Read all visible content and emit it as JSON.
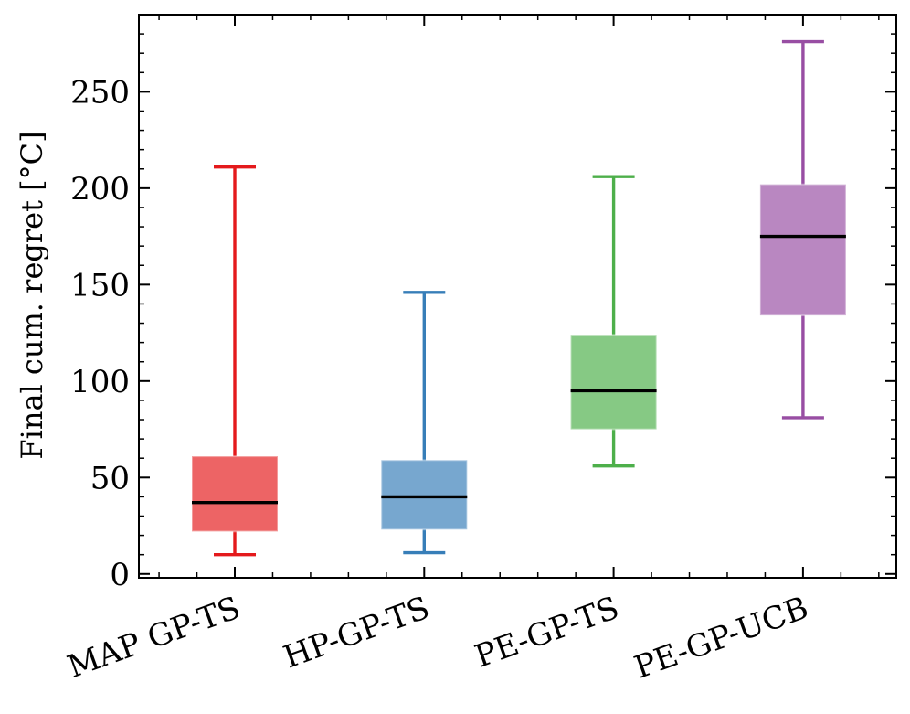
{
  "chart_data": {
    "type": "box",
    "title": "",
    "xlabel": "",
    "ylabel": "Final cum. regret [°C]",
    "ylim": [
      -2,
      290
    ],
    "yticks": [
      0,
      50,
      100,
      150,
      200,
      250
    ],
    "y_minor_step": 10,
    "grid": false,
    "categories": [
      "MAP GP-TS",
      "HP-GP-TS",
      "PE-GP-TS",
      "PE-GP-UCB"
    ],
    "boxes": [
      {
        "name": "MAP GP-TS",
        "whisker_low": 10,
        "q1": 22,
        "median": 37,
        "q3": 61,
        "whisker_high": 211,
        "color": "#e41a1c"
      },
      {
        "name": "HP-GP-TS",
        "whisker_low": 11,
        "q1": 23,
        "median": 40,
        "q3": 59,
        "whisker_high": 146,
        "color": "#377eb8"
      },
      {
        "name": "PE-GP-TS",
        "whisker_low": 56,
        "q1": 75,
        "median": 95,
        "q3": 124,
        "whisker_high": 206,
        "color": "#4daf4a"
      },
      {
        "name": "PE-GP-UCB",
        "whisker_low": 81,
        "q1": 134,
        "median": 175,
        "q3": 202,
        "whisker_high": 276,
        "color": "#984ea3"
      }
    ]
  }
}
